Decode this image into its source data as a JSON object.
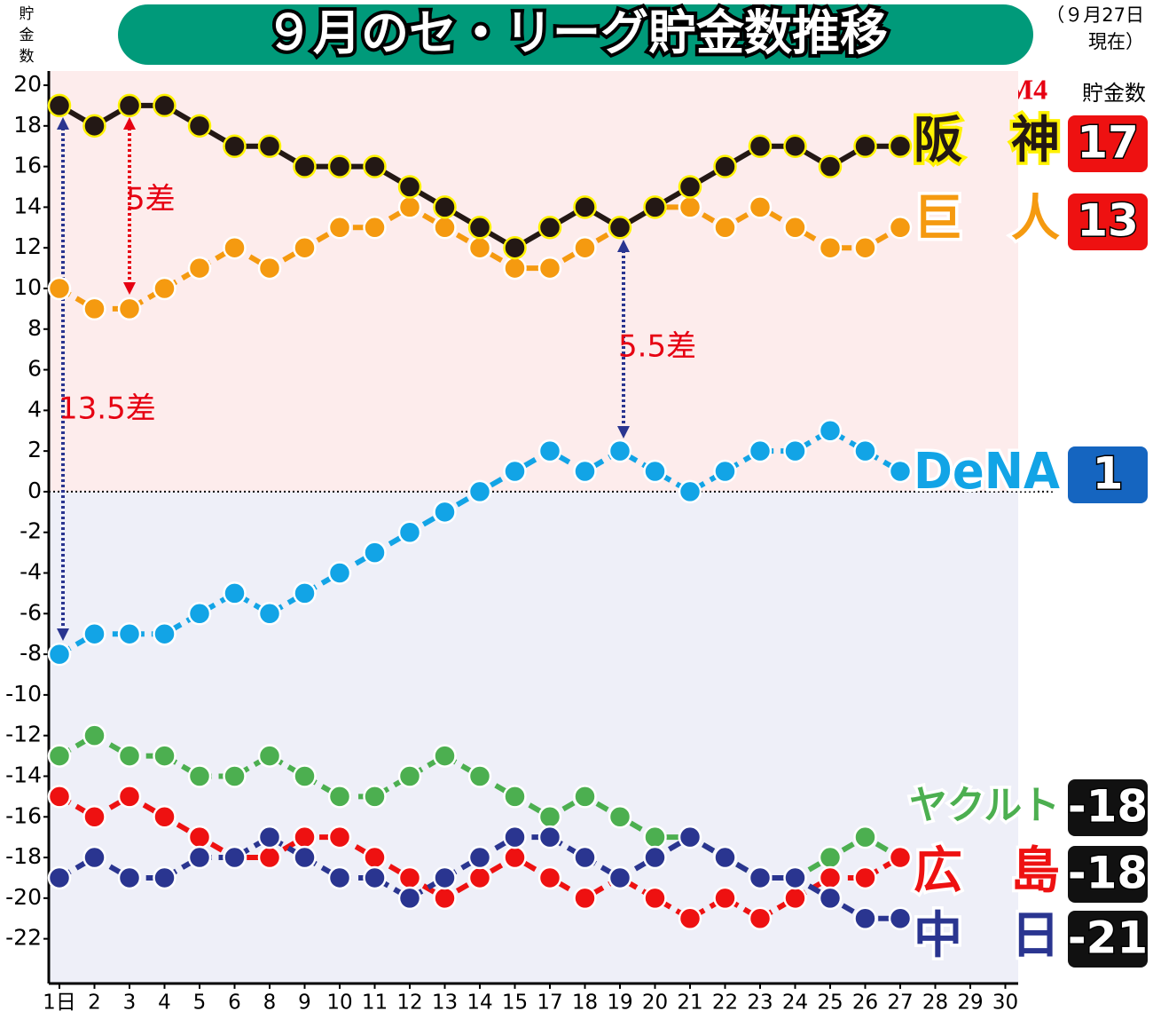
{
  "chart_data": {
    "type": "line",
    "title": "９月のセ・リーグ貯金数推移",
    "subtitle": [
      "（９月27日",
      "現在）"
    ],
    "y_label": [
      "貯",
      "金",
      "数"
    ],
    "right_header": "貯金数",
    "magic": "M4",
    "categories": [
      "1日",
      "2",
      "3",
      "4",
      "5",
      "6",
      "8",
      "9",
      "10",
      "11",
      "12",
      "13",
      "14",
      "15",
      "17",
      "18",
      "19",
      "20",
      "21",
      "22",
      "23",
      "24",
      "25",
      "26",
      "27",
      "28",
      "29",
      "30"
    ],
    "ylim": [
      -24.2,
      20.7
    ],
    "yticks": [
      20,
      18,
      16,
      14,
      12,
      10,
      8,
      6,
      4,
      2,
      0,
      -2,
      -4,
      -6,
      -8,
      -10,
      -12,
      -14,
      -16,
      -18,
      -20,
      -22
    ],
    "series": [
      {
        "name": "ヤクルト",
        "color": "#4caf50",
        "outline": "#ffffff",
        "final": -18,
        "badge_color": "#111111",
        "values": [
          -13,
          -12,
          -13,
          -13,
          -14,
          -14,
          -13,
          -14,
          -15,
          -15,
          -14,
          -13,
          -14,
          -15,
          -16,
          -15,
          -16,
          -17,
          -17,
          -18,
          -19,
          -19,
          -18,
          -17,
          -18,
          null,
          null,
          null
        ]
      },
      {
        "name": "広　島",
        "color": "#ee1111",
        "outline": "#ffffff",
        "final": -18,
        "badge_color": "#111111",
        "values": [
          -15,
          -16,
          -15,
          -16,
          -17,
          -18,
          -18,
          -17,
          -17,
          -18,
          -19,
          -20,
          -19,
          -18,
          -19,
          -20,
          -19,
          -20,
          -21,
          -20,
          -21,
          -20,
          -19,
          -19,
          -18,
          null,
          null,
          null
        ]
      },
      {
        "name": "中　日",
        "color": "#2a3590",
        "outline": "#ffffff",
        "final": -21,
        "badge_color": "#111111",
        "values": [
          -19,
          -18,
          -19,
          -19,
          -18,
          -18,
          -17,
          -18,
          -19,
          -19,
          -20,
          -19,
          -18,
          -17,
          -17,
          -18,
          -19,
          -18,
          -17,
          -18,
          -19,
          -19,
          -20,
          -21,
          -21,
          null,
          null,
          null
        ]
      },
      {
        "name": "DeNA",
        "color": "#12a4e6",
        "outline": "#ffffff",
        "final": 1,
        "badge_color": "#1565c0",
        "values": [
          -8,
          -7,
          -7,
          -7,
          -6,
          -5,
          -6,
          -5,
          -4,
          -3,
          -2,
          -1,
          0,
          1,
          2,
          1,
          2,
          1,
          0,
          1,
          2,
          2,
          3,
          2,
          1,
          null,
          null,
          null
        ]
      },
      {
        "name": "巨　人",
        "color": "#f59a10",
        "outline": "#ffffff",
        "final": 13,
        "badge_color": "#ee1111",
        "values": [
          10,
          9,
          9,
          10,
          11,
          12,
          11,
          12,
          13,
          13,
          14,
          13,
          12,
          11,
          11,
          12,
          13,
          14,
          14,
          13,
          14,
          13,
          12,
          12,
          13,
          null,
          null,
          null
        ]
      },
      {
        "name": "阪　神",
        "color": "#231815",
        "outline": "#fff200",
        "final": 17,
        "badge_color": "#ee1111",
        "values": [
          19,
          18,
          19,
          19,
          18,
          17,
          17,
          16,
          16,
          16,
          15,
          14,
          13,
          12,
          13,
          14,
          13,
          14,
          15,
          16,
          17,
          17,
          16,
          17,
          17,
          null,
          null,
          null
        ]
      }
    ],
    "annotations": [
      "5差",
      "13.5差",
      "5.5差"
    ]
  }
}
